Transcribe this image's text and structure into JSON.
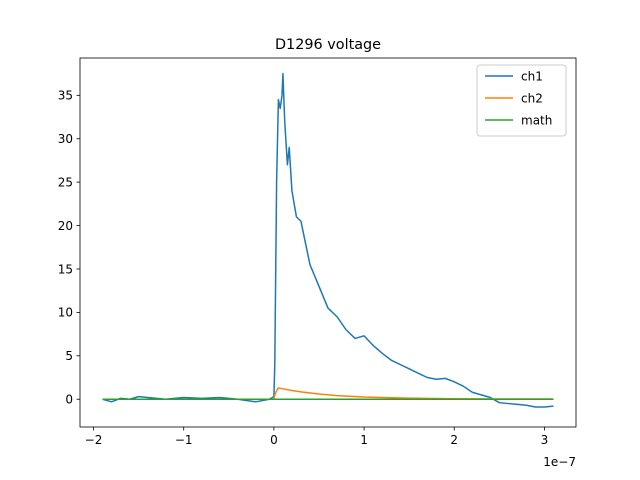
{
  "chart_data": {
    "type": "line",
    "title": "D1296 voltage",
    "xlabel": "",
    "ylabel": "",
    "x_offset_label": "1e−7",
    "xlim": [
      -2.15e-07,
      3.35e-07
    ],
    "ylim": [
      -3.2,
      39.3
    ],
    "xticks": [
      -2e-07,
      -1e-07,
      0,
      1e-07,
      2e-07,
      3e-07
    ],
    "xtick_labels": [
      "−2",
      "−1",
      "0",
      "1",
      "2",
      "3"
    ],
    "yticks": [
      0,
      5,
      10,
      15,
      20,
      25,
      30,
      35
    ],
    "ytick_labels": [
      "0",
      "5",
      "10",
      "15",
      "20",
      "25",
      "30",
      "35"
    ],
    "grid": false,
    "legend_position": "top-right",
    "series": [
      {
        "name": "ch1",
        "color": "#1f77b4",
        "x": [
          -1.9e-07,
          -1.8e-07,
          -1.7e-07,
          -1.6e-07,
          -1.5e-07,
          -1.4e-07,
          -1.2e-07,
          -1e-07,
          -8e-08,
          -6e-08,
          -4e-08,
          -2e-08,
          -5e-09,
          0.0,
          1e-09,
          3e-09,
          5e-09,
          7e-09,
          9e-09,
          1e-08,
          1.2e-08,
          1.5e-08,
          1.7e-08,
          2e-08,
          2.5e-08,
          3e-08,
          3.5e-08,
          4e-08,
          5e-08,
          6e-08,
          7e-08,
          8e-08,
          9e-08,
          1e-07,
          1.1e-07,
          1.2e-07,
          1.3e-07,
          1.4e-07,
          1.5e-07,
          1.6e-07,
          1.7e-07,
          1.8e-07,
          1.9e-07,
          2e-07,
          2.1e-07,
          2.2e-07,
          2.3e-07,
          2.4e-07,
          2.5e-07,
          2.6e-07,
          2.7e-07,
          2.8e-07,
          2.9e-07,
          3e-07,
          3.1e-07
        ],
        "y": [
          0.0,
          -0.3,
          0.1,
          0.0,
          0.3,
          0.2,
          0.0,
          0.2,
          0.1,
          0.2,
          0.0,
          -0.3,
          0.0,
          0.3,
          4.0,
          25.0,
          34.5,
          33.5,
          35.0,
          37.5,
          32.0,
          27.0,
          29.0,
          24.0,
          21.0,
          20.5,
          18.0,
          15.5,
          13.0,
          10.5,
          9.5,
          8.0,
          7.0,
          7.3,
          6.2,
          5.3,
          4.5,
          4.0,
          3.5,
          3.0,
          2.5,
          2.3,
          2.4,
          2.0,
          1.5,
          0.8,
          0.5,
          0.2,
          -0.4,
          -0.5,
          -0.6,
          -0.7,
          -0.9,
          -0.9,
          -0.8
        ]
      },
      {
        "name": "ch2",
        "color": "#ff7f0e",
        "x": [
          -1.9e-07,
          -1e-07,
          0.0,
          1e-09,
          3e-09,
          5e-09,
          1e-08,
          2e-08,
          3e-08,
          5e-08,
          7e-08,
          1e-07,
          1.5e-07,
          2e-07,
          2.5e-07,
          3.1e-07
        ],
        "y": [
          0.0,
          0.0,
          0.0,
          0.5,
          1.0,
          1.3,
          1.2,
          1.0,
          0.85,
          0.6,
          0.42,
          0.25,
          0.12,
          0.06,
          0.03,
          0.02
        ]
      },
      {
        "name": "math",
        "color": "#2ca02c",
        "x": [
          -1.9e-07,
          3.1e-07
        ],
        "y": [
          0.0,
          0.0
        ]
      }
    ]
  }
}
